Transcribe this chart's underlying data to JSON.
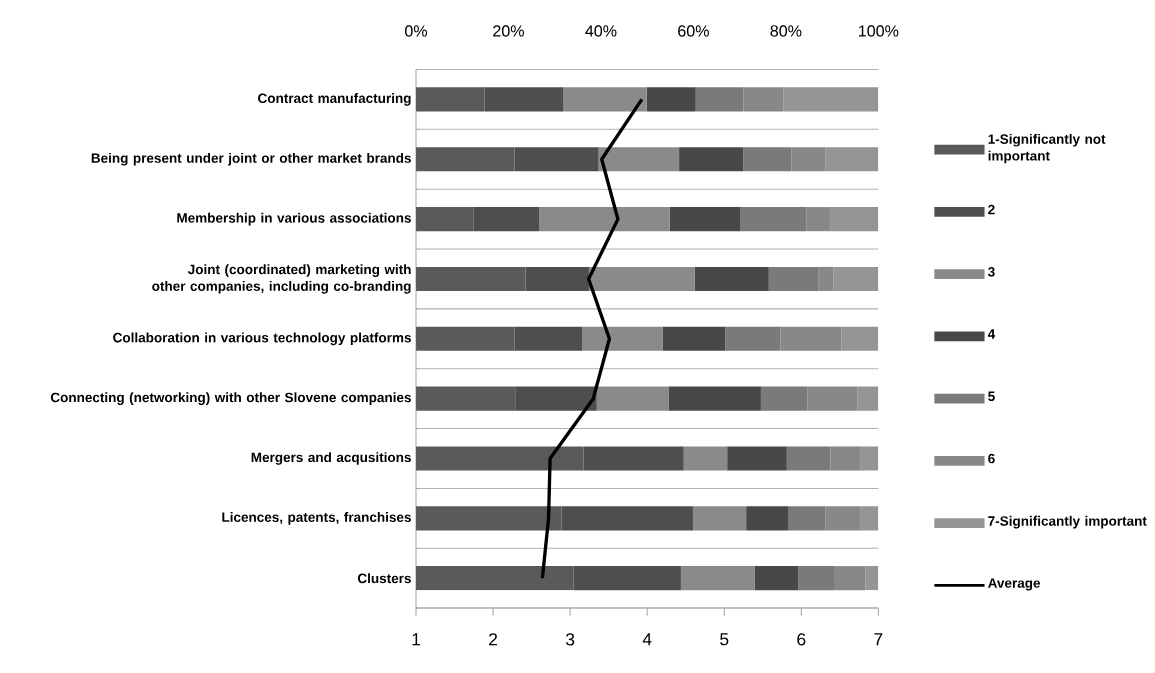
{
  "chart_data": {
    "type": "bar",
    "orientation": "horizontal",
    "stacked": true,
    "categories": [
      "Contract manufacturing",
      "Being present under joint or other market brands",
      "Membership in various associations",
      "Joint (coordinated) marketing with other companies, including co-branding",
      "Collaboration in various technology platforms",
      "Connecting (networking) with other Slovene companies",
      "Mergers and acqusitions",
      "Licences, patents, franchises",
      "Clusters"
    ],
    "xlim": [
      0,
      100
    ],
    "xticks": [
      {
        "value": 0,
        "label": "0%"
      },
      {
        "value": 20,
        "label": "20%"
      },
      {
        "value": 40,
        "label": "40%"
      },
      {
        "value": 60,
        "label": "60%"
      },
      {
        "value": 80,
        "label": "80%"
      },
      {
        "value": 100,
        "label": "100%"
      }
    ],
    "x2lim": [
      1,
      7
    ],
    "x2ticks": [
      1,
      2,
      3,
      4,
      5,
      6,
      7
    ],
    "grid": "y",
    "legend": "right",
    "series": [
      {
        "name": "1-Significantly not important",
        "color": "#5a5a5a",
        "values": [
          14.8,
          21.3,
          12.5,
          23.7,
          21.3,
          21.6,
          36.3,
          31.5,
          34.1
        ]
      },
      {
        "name": "2",
        "color": "#4e4e4e",
        "values": [
          17.1,
          18.2,
          14.1,
          13.7,
          14.6,
          17.5,
          21.6,
          28.4,
          23.2
        ]
      },
      {
        "name": "3",
        "color": "#8a8a8a",
        "values": [
          18.0,
          17.4,
          28.3,
          22.9,
          17.5,
          15.5,
          9.4,
          11.5,
          15.9
        ]
      },
      {
        "name": "4",
        "color": "#484848",
        "values": [
          10.6,
          13.9,
          15.3,
          16.0,
          13.5,
          20.0,
          12.9,
          9.2,
          9.5
        ]
      },
      {
        "name": "5",
        "color": "#7a7a7a",
        "values": [
          10.3,
          10.4,
          14.3,
          10.8,
          11.9,
          10.1,
          9.4,
          8.0,
          7.9
        ]
      },
      {
        "name": "6",
        "color": "#888888",
        "values": [
          8.7,
          7.3,
          5.2,
          3.2,
          13.2,
          10.8,
          6.6,
          7.6,
          6.6
        ]
      },
      {
        "name": "7-Significantly important",
        "color": "#959595",
        "values": [
          20.5,
          11.5,
          10.3,
          9.7,
          8.0,
          4.5,
          3.8,
          3.8,
          2.8
        ]
      },
      {
        "name": "Average",
        "type": "line",
        "axis": "x2",
        "color": "#000000",
        "values": [
          3.93,
          3.41,
          3.62,
          3.24,
          3.51,
          3.3,
          2.74,
          2.72,
          2.64
        ]
      }
    ]
  }
}
